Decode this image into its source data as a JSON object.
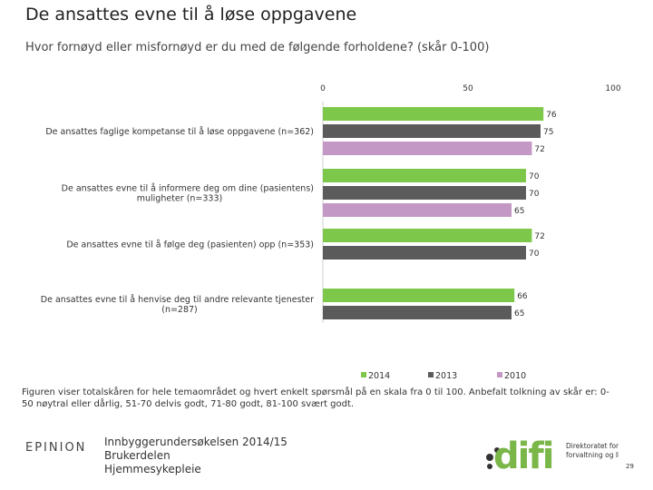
{
  "title": "De ansattes evne til å løse oppgavene",
  "question": "Hvor fornøyd eller misfornøyd er du med de følgende forholdene? (skår 0-100)",
  "footnote": "Figuren viser totalskåren for hele temaområdet og hvert enkelt spørsmål på en skala fra 0 til 100. Anbefalt tolkning av skår er: 0-50 nøytral eller dårlig, 51-70 delvis godt, 71-80 godt, 81-100 svært godt.",
  "footer": {
    "epinion": "EPINION",
    "survey": "Innbyggerundersøkelsen 2014/15",
    "section1": "Brukerdelen",
    "section2": "Hjemmesykepleie",
    "difi_wordmark": "difi",
    "difi_tagline1": "Direktoratet for",
    "difi_tagline2": "forvaltning og IKT",
    "page_number": "29"
  },
  "colors": {
    "s2014": "#7dc84a",
    "s2013": "#5b5b5b",
    "s2010": "#c498c4",
    "difi_green": "#7ab648",
    "difi_dark": "#333333"
  },
  "chart_data": {
    "type": "bar",
    "orientation": "horizontal",
    "xlim": [
      0,
      100
    ],
    "ticks": [
      0,
      50,
      100
    ],
    "legend_position": "bottom",
    "categories": [
      "De ansattes faglige kompetanse til å løse oppgavene (n=362)",
      "De ansattes evne til å informere deg om dine (pasientens) muligheter (n=333)",
      "De ansattes evne til å følge deg (pasienten) opp (n=353)",
      "De ansattes evne til å henvise deg til andre relevante tjenester (n=287)"
    ],
    "series": [
      {
        "name": "2014",
        "values": [
          76,
          70,
          72,
          66
        ]
      },
      {
        "name": "2013",
        "values": [
          75,
          70,
          70,
          65
        ]
      },
      {
        "name": "2010",
        "values": [
          72,
          65,
          null,
          null
        ]
      }
    ]
  }
}
